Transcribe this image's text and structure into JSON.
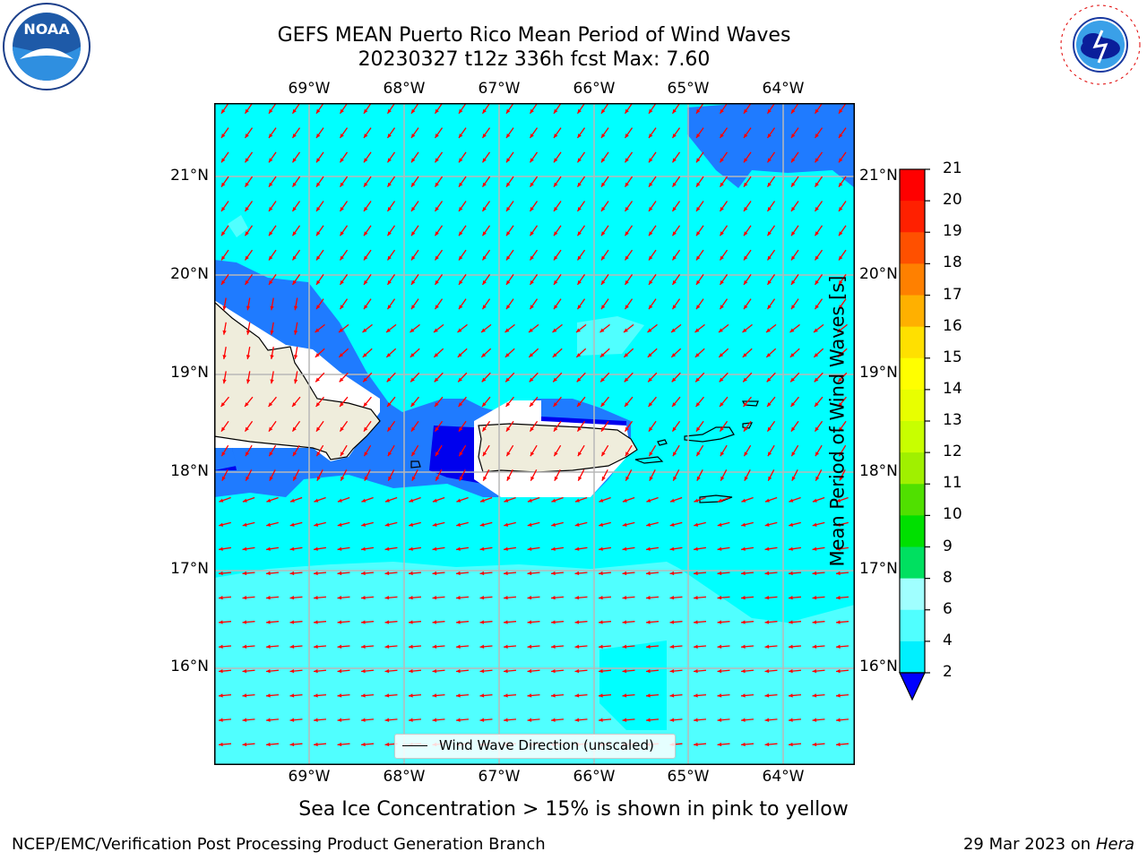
{
  "title_line1": "GEFS MEAN Puerto Rico Mean Period of Wind Waves",
  "title_line2": "20230327 t12z 336h fcst   Max: 7.60",
  "lon_labels": [
    "69°W",
    "68°W",
    "67°W",
    "66°W",
    "65°W",
    "64°W"
  ],
  "lat_labels": [
    "21°N",
    "20°N",
    "19°N",
    "18°N",
    "17°N",
    "16°N"
  ],
  "colorbar": {
    "title": "Mean Period of Wind Waves [s]",
    "ticks": [
      "21",
      "20",
      "19",
      "18",
      "17",
      "16",
      "15",
      "14",
      "13",
      "12",
      "11",
      "10",
      "9",
      "8",
      "6",
      "4",
      "2"
    ],
    "colors": [
      "#ff0000",
      "#ff2000",
      "#ff5000",
      "#ff8000",
      "#ffb000",
      "#ffe000",
      "#ffff00",
      "#e8ff00",
      "#c8ff00",
      "#a0f000",
      "#50e000",
      "#00e000",
      "#00e060",
      "#50ff90",
      "#a0ffff",
      "#50ffff",
      "#00f0ff",
      "#0080ff",
      "#0000ff"
    ]
  },
  "legend_label": "Wind Wave Direction (unscaled)",
  "subnote": "Sea Ice Concentration > 15% is shown in pink to yellow",
  "footer_left": "NCEP/EMC/Verification Post Processing Product Generation Branch",
  "footer_date": "29 Mar 2023 on",
  "footer_host": "Hera",
  "logo_left": "NOAA",
  "logo_right": "NATIONAL WEATHER SERVICE",
  "colors": {
    "ocean": "#00ffff",
    "light_band": "#50ffff",
    "mid_band": "#1f7bff",
    "deep_band": "#0000ee",
    "land": "#efeddc",
    "arrow": "#ff0000"
  }
}
